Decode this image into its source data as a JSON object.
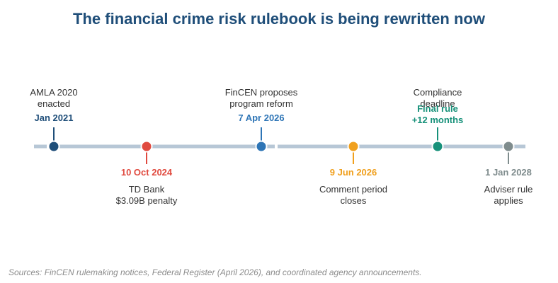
{
  "title": "The financial crime risk rulebook is being rewritten now",
  "events": [
    {
      "date": "Jan 2021",
      "desc_lines": [
        "AMLA 2020",
        "enacted"
      ],
      "color": "#1f4e79",
      "side": "above"
    },
    {
      "date": "10 Oct 2024",
      "desc_lines": [
        "TD Bank",
        "$3.09B penalty"
      ],
      "color": "#e04a3f",
      "side": "below"
    },
    {
      "date": "7 Apr 2026",
      "desc_lines": [
        "FinCEN proposes",
        "program reform"
      ],
      "color": "#2e75b6",
      "side": "above"
    },
    {
      "date": "9 Jun 2026",
      "desc_lines": [
        "Comment period",
        "closes"
      ],
      "color": "#f0a01e",
      "side": "below"
    },
    {
      "date_lines": [
        "Final rule",
        "+12 months"
      ],
      "desc_lines": [
        "Compliance",
        "deadline"
      ],
      "color": "#17917a",
      "side": "above"
    },
    {
      "date": "1 Jan 2028",
      "desc_lines": [
        "Adviser rule",
        "applies"
      ],
      "color": "#7f8c8d",
      "side": "below"
    }
  ],
  "footer": "Sources: FinCEN rulemaking notices, Federal Register (April 2026), and coordinated agency announcements."
}
